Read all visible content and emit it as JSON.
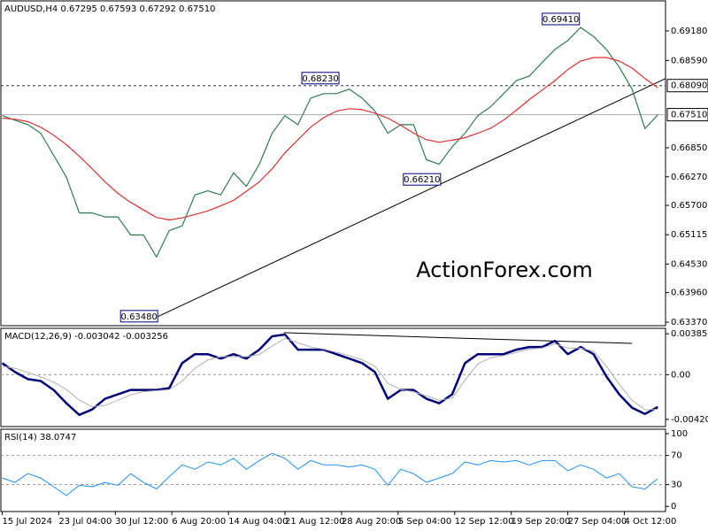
{
  "chart_data": [
    {
      "type": "line",
      "title": "AUDUSD,H4 0.67295 0.67593 0.67292 0.67510",
      "watermark": "ActionForex.com",
      "x": [
        0,
        10,
        20,
        30,
        40,
        50,
        60,
        70,
        80,
        90,
        100,
        110,
        120,
        130,
        140,
        150,
        160,
        170,
        180,
        190,
        200,
        210,
        220,
        230,
        240,
        250,
        260,
        270,
        280,
        290,
        300,
        310,
        320,
        330,
        340,
        350,
        360,
        370,
        380,
        390,
        400,
        410,
        420,
        430,
        440,
        450,
        460,
        470,
        480,
        490,
        500,
        510
      ],
      "xlim": [
        -1,
        516
      ],
      "ylim": [
        0.633,
        0.6978
      ],
      "yticks": [
        {
          "value": 0.6918,
          "label": "0.69180"
        },
        {
          "value": 0.6859,
          "label": "0.68590"
        },
        {
          "value": 0.6685,
          "label": "0.66850"
        },
        {
          "value": 0.6627,
          "label": "0.66270"
        },
        {
          "value": 0.657,
          "label": "0.65700"
        },
        0.65115,
        {
          "value": 0.6453,
          "label": "0.64530"
        },
        {
          "value": 0.6396,
          "label": "0.63960"
        },
        {
          "value": 0.6337,
          "label": "0.63370"
        }
      ],
      "series": [
        {
          "color": "#2e7d4f",
          "line_width": 1.2,
          "values": [
            0.6749,
            0.674,
            0.6731,
            0.6714,
            0.667,
            0.6626,
            0.6555,
            0.6555,
            0.6547,
            0.6547,
            0.6511,
            0.6511,
            0.6467,
            0.652,
            0.6529,
            0.6591,
            0.6599,
            0.6591,
            0.6635,
            0.6608,
            0.6652,
            0.6714,
            0.6749,
            0.6731,
            0.6784,
            0.6793,
            0.6793,
            0.6802,
            0.6784,
            0.6758,
            0.6714,
            0.6731,
            0.6731,
            0.6661,
            0.6652,
            0.6687,
            0.6714,
            0.6749,
            0.6767,
            0.6793,
            0.6819,
            0.6828,
            0.6855,
            0.6881,
            0.6899,
            0.6925,
            0.6907,
            0.6881,
            0.6846,
            0.6802,
            0.6723,
            0.6751
          ]
        },
        {
          "color": "#e03030",
          "line_width": 1.2,
          "values": [
            0.6744,
            0.6742,
            0.6737,
            0.6726,
            0.671,
            0.6691,
            0.6668,
            0.6643,
            0.6617,
            0.6594,
            0.6576,
            0.6561,
            0.6546,
            0.6541,
            0.6545,
            0.6552,
            0.6559,
            0.6569,
            0.658,
            0.6598,
            0.6617,
            0.6643,
            0.6675,
            0.6701,
            0.6726,
            0.6745,
            0.6758,
            0.6763,
            0.6761,
            0.6754,
            0.6744,
            0.673,
            0.6714,
            0.6701,
            0.6696,
            0.67,
            0.6705,
            0.6714,
            0.6724,
            0.674,
            0.676,
            0.6781,
            0.68,
            0.6819,
            0.6841,
            0.6858,
            0.6865,
            0.6865,
            0.6858,
            0.6844,
            0.6823,
            0.6805
          ]
        }
      ],
      "hlines": [
        {
          "value": 0.6809,
          "label": "0.68090",
          "style": "dashed"
        },
        {
          "value": 0.6751,
          "label": "0.67510",
          "style": "solid"
        }
      ],
      "trendlines": [
        {
          "x": [
            121,
            516
          ],
          "values": [
            0.6348,
            0.6823
          ]
        }
      ],
      "annotations": [
        {
          "x": 121,
          "value": 0.6348,
          "label": "0.63480"
        },
        {
          "x": 262,
          "value": 0.6823,
          "label": "0.68230"
        },
        {
          "x": 341,
          "value": 0.6621,
          "label": "0.66210"
        },
        {
          "x": 449,
          "value": 0.6941,
          "label": "0.69410"
        }
      ]
    },
    {
      "type": "line",
      "title": "MACD(12,26,9) -0.003042 -0.003256",
      "x": [
        0,
        10,
        20,
        30,
        40,
        50,
        60,
        70,
        80,
        90,
        100,
        110,
        120,
        130,
        140,
        150,
        160,
        170,
        180,
        190,
        200,
        210,
        220,
        230,
        240,
        250,
        260,
        270,
        280,
        290,
        300,
        310,
        320,
        330,
        340,
        350,
        360,
        370,
        380,
        390,
        400,
        410,
        420,
        430,
        440,
        450,
        460,
        470,
        480,
        490,
        500,
        510
      ],
      "xlim": [
        -1,
        516
      ],
      "ylim": [
        -0.00488,
        0.00436
      ],
      "yticks": [
        0.003852,
        {
          "value": 0,
          "label": "0.00"
        },
        -0.004204
      ],
      "levels": [
        0
      ],
      "series": [
        {
          "color": "#00007a",
          "line_width": 2.5,
          "values": [
            0.00109,
            0.00025,
            -0.00042,
            -0.00059,
            -0.00143,
            -0.00269,
            -0.00378,
            -0.00327,
            -0.00227,
            -0.00185,
            -0.00143,
            -0.00143,
            -0.00143,
            -0.00126,
            0.00109,
            0.00193,
            0.00193,
            0.00151,
            0.00193,
            0.00151,
            0.00235,
            0.00361,
            0.00378,
            0.00235,
            0.00235,
            0.00235,
            0.00193,
            0.00151,
            0.00109,
            0.00025,
            -0.00227,
            -0.00143,
            -0.00143,
            -0.00227,
            -0.00269,
            -0.00185,
            0.00109,
            0.00193,
            0.00193,
            0.00193,
            0.00235,
            0.0026,
            0.0026,
            0.00319,
            0.00193,
            0.0026,
            0.00193,
            -0.00017,
            -0.00185,
            -0.00311,
            -0.00369,
            -0.00304
          ]
        },
        {
          "color": "#b0b0b0",
          "line_width": 1,
          "values": [
            0.0008,
            0.0006,
            0.0002,
            -0.0002,
            -0.0007,
            -0.0014,
            -0.0024,
            -0.003,
            -0.0029,
            -0.0024,
            -0.0019,
            -0.0016,
            -0.0015,
            -0.0014,
            -0.0006,
            0.0006,
            0.0014,
            0.0017,
            0.0017,
            0.0017,
            0.0019,
            0.0027,
            0.0034,
            0.003,
            0.0026,
            0.0024,
            0.0021,
            0.0018,
            0.0014,
            0.0008,
            -0.0008,
            -0.0014,
            -0.0016,
            -0.002,
            -0.0024,
            -0.0022,
            -0.0005,
            0.001,
            0.0016,
            0.0018,
            0.0021,
            0.0024,
            0.0025,
            0.0029,
            0.0025,
            0.0025,
            0.0022,
            0.0008,
            -0.0009,
            -0.0024,
            -0.0033,
            -0.00326
          ]
        }
      ],
      "trendlines": [
        {
          "x": [
            219,
            490
          ],
          "values": [
            0.00395,
            0.00294
          ]
        }
      ]
    },
    {
      "type": "line",
      "title": "RSI(14) 38.0747",
      "x": [
        0,
        10,
        20,
        30,
        40,
        50,
        60,
        70,
        80,
        90,
        100,
        110,
        120,
        130,
        140,
        150,
        160,
        170,
        180,
        190,
        200,
        210,
        220,
        230,
        240,
        250,
        260,
        270,
        280,
        290,
        300,
        310,
        320,
        330,
        340,
        350,
        360,
        370,
        380,
        390,
        400,
        410,
        420,
        430,
        440,
        450,
        460,
        470,
        480,
        490,
        500,
        510
      ],
      "xlim": [
        -1,
        516
      ],
      "ylim": [
        -7,
        106
      ],
      "yticks": [
        100,
        70,
        30,
        0
      ],
      "levels": [
        70,
        30
      ],
      "series": [
        {
          "color": "#1e90ff",
          "line_width": 1,
          "values": [
            39,
            33,
            45,
            39,
            27,
            15,
            29,
            27,
            33,
            29,
            45,
            33,
            24,
            41,
            57,
            51,
            61,
            57,
            66,
            51,
            63,
            73,
            66,
            51,
            63,
            57,
            57,
            54,
            57,
            51,
            29,
            51,
            45,
            33,
            39,
            45,
            61,
            57,
            63,
            61,
            63,
            57,
            63,
            63,
            49,
            57,
            51,
            39,
            45,
            27,
            24,
            38.07
          ]
        }
      ],
      "xticks": [
        {
          "value": 0,
          "label": "15 Jul 2024"
        },
        {
          "value": 44,
          "label": "23 Jul 04:00"
        },
        {
          "value": 88,
          "label": "30 Jul 12:00"
        },
        {
          "value": 132,
          "label": "6 Aug 20:00"
        },
        {
          "value": 176,
          "label": "14 Aug 04:00"
        },
        {
          "value": 220,
          "label": "21 Aug 12:00"
        },
        {
          "value": 264,
          "label": "28 Aug 20:00"
        },
        {
          "value": 308,
          "label": "5 Sep 04:00"
        },
        {
          "value": 352,
          "label": "12 Sep 12:00"
        },
        {
          "value": 396,
          "label": "19 Sep 20:00"
        },
        {
          "value": 440,
          "label": "27 Sep 04:00"
        },
        {
          "value": 484,
          "label": "4 Oct 12:00"
        }
      ]
    }
  ]
}
